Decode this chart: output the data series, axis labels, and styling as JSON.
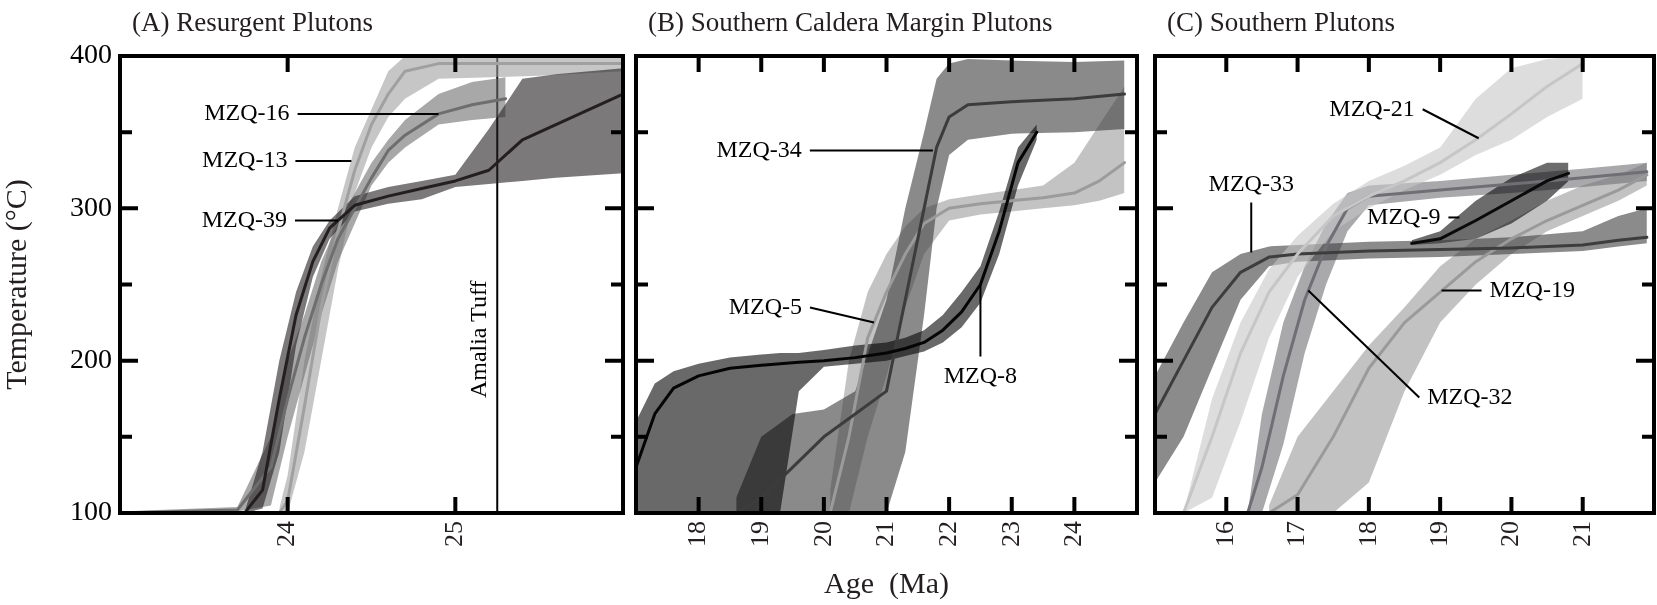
{
  "chart_data": [
    {
      "type": "line",
      "title": "(A) Resurgent Plutons",
      "ylabel": "Temperature (°C)",
      "xlim": [
        23,
        26
      ],
      "ylim": [
        100,
        400
      ],
      "xticks": [
        24,
        25
      ],
      "yticks": [
        100,
        {
          "value": 150,
          "label": null
        },
        200,
        {
          "value": 250,
          "label": null
        },
        300,
        {
          "value": 350,
          "label": null
        },
        400
      ],
      "ref_lines": [
        {
          "axis": "x",
          "value": 25.25,
          "label": "Amalia Tuff"
        }
      ],
      "series": [
        {
          "color": "#231f20",
          "x": [
            23.75,
            23.85,
            23.95,
            24.05,
            24.15,
            24.25,
            24.4,
            24.6,
            24.8,
            25.0,
            25.2,
            25.4,
            25.6,
            26.0
          ],
          "values": [
            101,
            115,
            175,
            230,
            265,
            287,
            302,
            308,
            313,
            318,
            325,
            345,
            355,
            375
          ],
          "lower": [
            100,
            103,
            140,
            210,
            255,
            280,
            298,
            303,
            306,
            314,
            316,
            318,
            320,
            323
          ],
          "upper": [
            103,
            140,
            200,
            245,
            275,
            292,
            308,
            314,
            318,
            322,
            352,
            385,
            388,
            392
          ]
        },
        {
          "color": "#6e6e6e",
          "x": [
            23.0,
            23.7,
            23.9,
            24.0,
            24.1,
            24.2,
            24.3,
            24.4,
            24.5,
            24.6,
            24.7,
            24.9,
            25.1,
            25.3
          ],
          "values": [
            100,
            102,
            130,
            175,
            215,
            250,
            280,
            300,
            320,
            338,
            348,
            362,
            368,
            372
          ],
          "lower": [
            100,
            101,
            105,
            150,
            190,
            230,
            265,
            290,
            315,
            330,
            340,
            355,
            358,
            360
          ],
          "upper": [
            101,
            104,
            150,
            200,
            230,
            265,
            290,
            310,
            330,
            345,
            358,
            375,
            383,
            386
          ]
        },
        {
          "color": "#a0a0a0",
          "x": [
            23.95,
            24.0,
            24.1,
            24.2,
            24.3,
            24.4,
            24.5,
            24.6,
            24.7,
            24.9,
            25.5,
            26.0
          ],
          "values": [
            100,
            108,
            170,
            235,
            285,
            325,
            355,
            375,
            390,
            395,
            395,
            395
          ],
          "lower": [
            100,
            100,
            140,
            200,
            260,
            310,
            340,
            360,
            372,
            385,
            387,
            390
          ],
          "upper": [
            103,
            125,
            200,
            255,
            300,
            340,
            365,
            390,
            400,
            400,
            400,
            400
          ]
        }
      ],
      "annotations": [
        {
          "text": "MZQ-16",
          "x": 24.9,
          "y": 362
        },
        {
          "text": "MZQ-13",
          "x": 24.38,
          "y": 331
        },
        {
          "text": "MZQ-39",
          "x": 24.3,
          "y": 292
        }
      ]
    },
    {
      "type": "line",
      "title": "(B) Southern Caldera Margin Plutons",
      "xlabel": "Age  (Ma)",
      "tick_labels": "x",
      "xlim": [
        17,
        25
      ],
      "ylim": [
        100,
        400
      ],
      "xticks": [
        18,
        19,
        20,
        21,
        22,
        23,
        24
      ],
      "yticks": [
        100,
        {
          "value": 150,
          "label": null
        },
        200,
        {
          "value": 250,
          "label": null
        },
        300,
        {
          "value": 350,
          "label": null
        },
        400
      ],
      "series": [
        {
          "color": "#050505",
          "x": [
            17.0,
            17.3,
            17.6,
            18.0,
            18.5,
            19.0,
            19.3,
            19.6,
            20.0,
            20.5,
            21.0,
            21.3,
            21.6,
            21.9,
            22.2,
            22.5,
            22.8,
            23.1,
            23.4
          ],
          "values": [
            130,
            165,
            182,
            190,
            195,
            197,
            198,
            199,
            200,
            202,
            205,
            208,
            212,
            220,
            232,
            250,
            285,
            330,
            350
          ],
          "lower": [
            100,
            100,
            100,
            100,
            100,
            100,
            100,
            180,
            196,
            198,
            200,
            203,
            206,
            212,
            222,
            238,
            270,
            315,
            345
          ],
          "upper": [
            160,
            185,
            193,
            198,
            202,
            204,
            205,
            205,
            207,
            210,
            212,
            215,
            220,
            230,
            245,
            262,
            298,
            340,
            355
          ]
        },
        {
          "color": "#3c3c3c",
          "x": [
            18.6,
            19.0,
            19.5,
            20.0,
            20.5,
            21.0,
            21.3,
            21.6,
            21.8,
            22.0,
            22.3,
            23.0,
            24.0,
            24.8
          ],
          "values": [
            100,
            110,
            130,
            150,
            165,
            180,
            240,
            300,
            340,
            360,
            368,
            370,
            372,
            375
          ],
          "lower": [
            100,
            100,
            100,
            100,
            100,
            100,
            140,
            230,
            300,
            335,
            345,
            349,
            350,
            352
          ],
          "upper": [
            110,
            150,
            165,
            168,
            180,
            240,
            300,
            350,
            385,
            395,
            398,
            397,
            396,
            397
          ]
        },
        {
          "color": "#9b9b9b",
          "x": [
            20.1,
            20.4,
            20.7,
            21.0,
            21.3,
            21.6,
            22.0,
            22.5,
            23.0,
            23.5,
            24.0,
            24.4,
            24.8
          ],
          "values": [
            100,
            150,
            215,
            245,
            270,
            290,
            300,
            303,
            305,
            307,
            310,
            318,
            330
          ],
          "lower": [
            100,
            100,
            150,
            190,
            235,
            270,
            292,
            296,
            298,
            300,
            302,
            305,
            310
          ],
          "upper": [
            115,
            200,
            245,
            270,
            288,
            300,
            306,
            309,
            312,
            315,
            330,
            355,
            380
          ]
        }
      ],
      "annotations": [
        {
          "text": "MZQ-34",
          "x": 21.74,
          "y": 338
        },
        {
          "text": "MZQ-5",
          "x": 20.8,
          "y": 225
        },
        {
          "text": "MZQ-8",
          "x": 22.5,
          "y": 250
        }
      ]
    },
    {
      "type": "line",
      "title": "(C) Southern Plutons",
      "tick_labels": "x",
      "xlim": [
        15,
        22
      ],
      "ylim": [
        100,
        400
      ],
      "xticks": [
        16,
        17,
        18,
        19,
        20,
        21
      ],
      "yticks": [
        100,
        {
          "value": 150,
          "label": null
        },
        200,
        {
          "value": 250,
          "label": null
        },
        300,
        {
          "value": 350,
          "label": null
        },
        400
      ],
      "series": [
        {
          "color": "#c6c6c6",
          "x": [
            15.4,
            15.8,
            16.2,
            16.6,
            17.0,
            17.5,
            18.0,
            18.5,
            19.0,
            19.5,
            20.0,
            20.5,
            21.0
          ],
          "values": [
            100,
            150,
            205,
            245,
            270,
            295,
            308,
            318,
            330,
            345,
            362,
            380,
            395
          ],
          "lower": [
            100,
            110,
            160,
            215,
            255,
            285,
            300,
            312,
            322,
            335,
            345,
            360,
            372
          ],
          "upper": [
            100,
            175,
            225,
            260,
            282,
            303,
            318,
            328,
            340,
            372,
            392,
            398,
            400
          ]
        },
        {
          "color": "#3d3d3d",
          "x": [
            15.0,
            15.4,
            15.8,
            16.2,
            16.6,
            17.0,
            18.0,
            19.0,
            20.0,
            21.0,
            21.5,
            21.9
          ],
          "values": [
            165,
            200,
            235,
            258,
            268,
            270,
            272,
            273,
            274,
            276,
            279,
            281
          ],
          "lower": [
            120,
            150,
            195,
            240,
            262,
            265,
            267,
            268,
            270,
            272,
            275,
            277
          ],
          "upper": [
            190,
            225,
            258,
            270,
            275,
            276,
            278,
            279,
            281,
            285,
            295,
            300
          ]
        },
        {
          "color": "#0a0a0a",
          "x": [
            18.6,
            19.0,
            19.5,
            20.0,
            20.5,
            20.8
          ],
          "values": [
            277,
            280,
            292,
            305,
            318,
            323
          ],
          "lower": [
            276,
            277,
            280,
            290,
            305,
            318
          ],
          "upper": [
            279,
            285,
            305,
            320,
            330,
            330
          ]
        },
        {
          "color": "#6f6f74",
          "x": [
            16.3,
            16.5,
            16.8,
            17.1,
            17.4,
            17.7,
            18.0,
            19.0,
            20.0,
            21.0,
            21.9
          ],
          "values": [
            100,
            130,
            190,
            240,
            275,
            300,
            308,
            312,
            316,
            320,
            324
          ],
          "lower": [
            100,
            100,
            145,
            205,
            250,
            285,
            302,
            307,
            310,
            314,
            318
          ],
          "upper": [
            100,
            165,
            225,
            262,
            290,
            310,
            315,
            318,
            322,
            326,
            330
          ]
        },
        {
          "color": "#9a9a9a",
          "x": [
            16.6,
            17.0,
            17.5,
            18.0,
            18.5,
            19.0,
            19.5,
            20.0,
            20.5,
            21.0,
            21.5,
            21.9
          ],
          "values": [
            100,
            112,
            150,
            195,
            225,
            245,
            265,
            280,
            292,
            302,
            312,
            322
          ],
          "lower": [
            100,
            100,
            100,
            120,
            180,
            225,
            250,
            270,
            285,
            295,
            305,
            315
          ],
          "upper": [
            105,
            150,
            180,
            210,
            235,
            262,
            280,
            292,
            305,
            315,
            322,
            330
          ]
        }
      ],
      "annotations": [
        {
          "text": "MZQ-21",
          "x": 19.54,
          "y": 346
        },
        {
          "text": "MZQ-33",
          "x": 16.35,
          "y": 271
        },
        {
          "text": "MZQ-9",
          "x": 19.27,
          "y": 294
        },
        {
          "text": "MZQ-32",
          "x": 17.15,
          "y": 246
        },
        {
          "text": "MZQ-19",
          "x": 19.02,
          "y": 246
        }
      ]
    }
  ]
}
